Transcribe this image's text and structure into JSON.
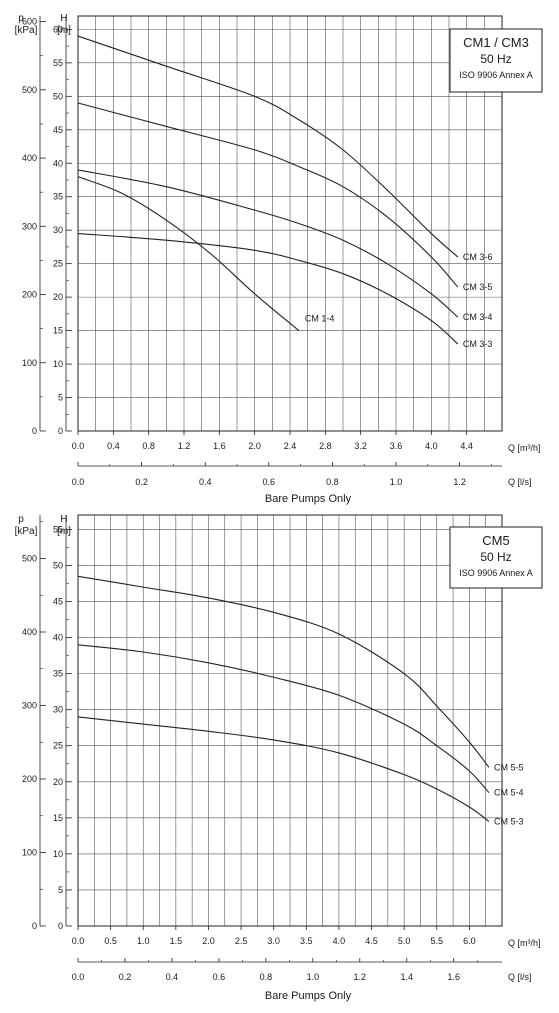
{
  "chart_data": [
    {
      "type": "line",
      "title": "CM1 / CM3",
      "subtitle": "50 Hz",
      "note": "ISO 9906 Annex A",
      "left_axis_label_p": "p",
      "left_axis_unit_p": "[kPa]",
      "left_axis_label_h": "H",
      "left_axis_unit_h": "[m]",
      "ylim": [
        0,
        62
      ],
      "h_ticks": [
        0,
        5,
        10,
        15,
        20,
        25,
        30,
        35,
        40,
        45,
        50,
        55,
        60
      ],
      "p_ticks": [
        0,
        100,
        200,
        300,
        400,
        500,
        600
      ],
      "p_tick_labels": [
        "0",
        "100",
        "200",
        "300",
        "400",
        "500",
        "600"
      ],
      "x_range": [
        0,
        4.8
      ],
      "x_ticks": [
        0.0,
        0.4,
        0.8,
        1.2,
        1.6,
        2.0,
        2.4,
        2.8,
        3.2,
        3.6,
        4.0,
        4.4
      ],
      "x_tick_labels": [
        "0.0",
        "0.4",
        "0.8",
        "1.2",
        "1.6",
        "2.0",
        "2.4",
        "2.8",
        "3.2",
        "3.6",
        "4.0",
        "4.4"
      ],
      "xlabel": "Q [m³/h]",
      "x2_ticks": [
        0.0,
        0.2,
        0.4,
        0.6,
        0.8,
        1.0,
        1.2
      ],
      "x2_tick_labels": [
        "0.0",
        "0.2",
        "0.4",
        "0.6",
        "0.8",
        "1.0",
        "1.2"
      ],
      "x2label": "Q [l/s]",
      "footer": "Bare Pumps Only",
      "series": [
        {
          "name": "CM 3-6",
          "x": [
            0.0,
            1.0,
            2.0,
            2.5,
            3.0,
            3.5,
            4.0,
            4.3
          ],
          "y": [
            59,
            54.5,
            50,
            46.5,
            42,
            36,
            29.5,
            26
          ]
        },
        {
          "name": "CM 3-5",
          "x": [
            0.0,
            1.0,
            2.0,
            2.5,
            3.0,
            3.5,
            4.0,
            4.3
          ],
          "y": [
            49,
            45.5,
            42,
            39.5,
            36.5,
            32,
            26,
            21.5
          ]
        },
        {
          "name": "CM 3-4",
          "x": [
            0.0,
            1.0,
            2.0,
            2.5,
            3.0,
            3.5,
            4.0,
            4.3
          ],
          "y": [
            39,
            36.5,
            33,
            31,
            28.5,
            25,
            20.5,
            17
          ]
        },
        {
          "name": "CM 3-3",
          "x": [
            0.0,
            1.0,
            2.0,
            2.5,
            3.0,
            3.5,
            4.0,
            4.3
          ],
          "y": [
            29.5,
            28.5,
            27,
            25.5,
            23.5,
            20.5,
            16.5,
            13
          ]
        },
        {
          "name": "CM 1-4",
          "x": [
            0.0,
            0.5,
            1.0,
            1.5,
            2.0,
            2.5
          ],
          "y": [
            38,
            35.5,
            31.5,
            26.5,
            20.5,
            15
          ]
        }
      ],
      "label_positions": {
        "CM 3-6": "right",
        "CM 3-5": "right",
        "CM 3-4": "right",
        "CM 3-3": "right",
        "CM 1-4": "inside"
      },
      "grid": true,
      "legend": "none"
    },
    {
      "type": "line",
      "title": "CM5",
      "subtitle": "50 Hz",
      "note": "ISO 9906 Annex A",
      "left_axis_label_p": "p",
      "left_axis_unit_p": "[kPa]",
      "left_axis_label_h": "H",
      "left_axis_unit_h": "[m]",
      "ylim": [
        0,
        57
      ],
      "h_ticks": [
        0,
        5,
        10,
        15,
        20,
        25,
        30,
        35,
        40,
        45,
        50,
        55
      ],
      "p_ticks": [
        0,
        100,
        200,
        300,
        400,
        500
      ],
      "p_tick_labels": [
        "0",
        "100",
        "200",
        "300",
        "400",
        "500"
      ],
      "x_range": [
        0,
        6.5
      ],
      "x_ticks": [
        0.0,
        0.5,
        1.0,
        1.5,
        2.0,
        2.5,
        3.0,
        3.5,
        4.0,
        4.5,
        5.0,
        5.5,
        6.0
      ],
      "x_tick_labels": [
        "0.0",
        "0.5",
        "1.0",
        "1.5",
        "2.0",
        "2.5",
        "3.0",
        "3.5",
        "4.0",
        "4.5",
        "5.0",
        "5.5",
        "6.0"
      ],
      "xlabel": "Q [m³/h]",
      "x2_ticks": [
        0.0,
        0.2,
        0.4,
        0.6,
        0.8,
        1.0,
        1.2,
        1.4,
        1.6
      ],
      "x2_tick_labels": [
        "0.0",
        "0.2",
        "0.4",
        "0.6",
        "0.8",
        "1.0",
        "1.2",
        "1.4",
        "1.6"
      ],
      "x2label": "Q [l/s]",
      "footer": "Bare Pumps Only",
      "series": [
        {
          "name": "CM 5-5",
          "x": [
            0.0,
            1.0,
            2.0,
            3.0,
            4.0,
            5.0,
            5.5,
            6.0,
            6.3
          ],
          "y": [
            48.5,
            47,
            45.5,
            43.5,
            40.5,
            35,
            30.5,
            25.5,
            22
          ]
        },
        {
          "name": "CM 5-4",
          "x": [
            0.0,
            1.0,
            2.0,
            3.0,
            4.0,
            5.0,
            5.5,
            6.0,
            6.3
          ],
          "y": [
            39,
            38,
            36.5,
            34.5,
            32,
            28,
            25,
            21.5,
            18.5
          ]
        },
        {
          "name": "CM 5-3",
          "x": [
            0.0,
            1.0,
            2.0,
            3.0,
            4.0,
            5.0,
            5.5,
            6.0,
            6.3
          ],
          "y": [
            29,
            28,
            27,
            25.8,
            24,
            21,
            19,
            16.5,
            14.5
          ]
        }
      ],
      "label_positions": {
        "CM 5-5": "right",
        "CM 5-4": "right",
        "CM 5-3": "right"
      },
      "grid": true,
      "legend": "none"
    }
  ],
  "colors": {
    "line": "#222222",
    "grid": "#555555",
    "background": "#ffffff"
  }
}
